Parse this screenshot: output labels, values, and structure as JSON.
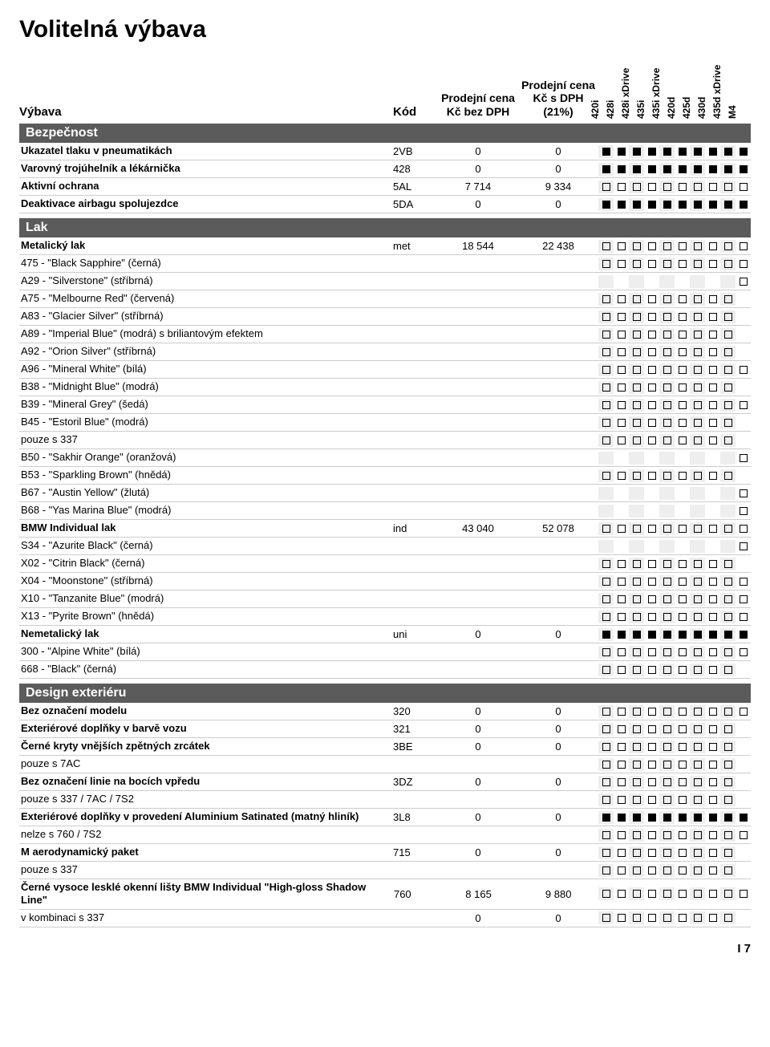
{
  "title": "Volitelná výbava",
  "header": {
    "vybava": "Výbava",
    "kod": "Kód",
    "p1_l1": "Prodejní cena",
    "p1_l2": "Kč bez DPH",
    "p2_l1": "Prodejní cena",
    "p2_l2": "Kč s DPH",
    "p2_l3": "(21%)"
  },
  "variants": [
    "420i",
    "428i",
    "428i xDrive",
    "435i",
    "435i xDrive",
    "420d",
    "425d",
    "430d",
    "435d xDrive",
    "M4"
  ],
  "sections": [
    {
      "title": "Bezpečnost",
      "rows": [
        {
          "name": "Ukazatel tlaku v pneumatikách",
          "kod": "2VB",
          "p1": "0",
          "p2": "0",
          "bold": true,
          "av": [
            "f",
            "f",
            "f",
            "f",
            "f",
            "f",
            "f",
            "f",
            "f",
            "f"
          ]
        },
        {
          "name": "Varovný trojúhelník a lékárnička",
          "kod": "428",
          "p1": "0",
          "p2": "0",
          "bold": true,
          "av": [
            "f",
            "f",
            "f",
            "f",
            "f",
            "f",
            "f",
            "f",
            "f",
            "f"
          ]
        },
        {
          "name": "Aktivní ochrana",
          "kod": "5AL",
          "p1": "7 714",
          "p2": "9 334",
          "bold": true,
          "av": [
            "o",
            "o",
            "o",
            "o",
            "o",
            "o",
            "o",
            "o",
            "o",
            "o"
          ]
        },
        {
          "name": "Deaktivace airbagu spolujezdce",
          "kod": "5DA",
          "p1": "0",
          "p2": "0",
          "bold": true,
          "av": [
            "f",
            "f",
            "f",
            "f",
            "f",
            "f",
            "f",
            "f",
            "f",
            "f"
          ]
        }
      ]
    },
    {
      "title": "Lak",
      "rows": [
        {
          "name": "Metalický lak",
          "kod": "met",
          "p1": "18 544",
          "p2": "22 438",
          "bold": true,
          "av": [
            "o",
            "o",
            "o",
            "o",
            "o",
            "o",
            "o",
            "o",
            "o",
            "o"
          ]
        },
        {
          "name": "475 - \"Black Sapphire\" (černá)",
          "av": [
            "o",
            "o",
            "o",
            "o",
            "o",
            "o",
            "o",
            "o",
            "o",
            "o"
          ]
        },
        {
          "name": "A29 - \"Silverstone\" (stříbrná)",
          "av": [
            "",
            "",
            "",
            "",
            "",
            "",
            "",
            "",
            "",
            "o"
          ]
        },
        {
          "name": "A75 - \"Melbourne Red\" (červená)",
          "av": [
            "o",
            "o",
            "o",
            "o",
            "o",
            "o",
            "o",
            "o",
            "o",
            ""
          ]
        },
        {
          "name": "A83 - \"Glacier Silver\" (stříbrná)",
          "av": [
            "o",
            "o",
            "o",
            "o",
            "o",
            "o",
            "o",
            "o",
            "o",
            ""
          ]
        },
        {
          "name": "A89 - \"Imperial Blue\" (modrá) s briliantovým efektem",
          "av": [
            "o",
            "o",
            "o",
            "o",
            "o",
            "o",
            "o",
            "o",
            "o",
            ""
          ]
        },
        {
          "name": "A92 - \"Orion Silver\" (stříbrná)",
          "av": [
            "o",
            "o",
            "o",
            "o",
            "o",
            "o",
            "o",
            "o",
            "o",
            ""
          ]
        },
        {
          "name": "A96 - \"Mineral White\" (bílá)",
          "av": [
            "o",
            "o",
            "o",
            "o",
            "o",
            "o",
            "o",
            "o",
            "o",
            "o"
          ]
        },
        {
          "name": "B38 - \"Midnight Blue\" (modrá)",
          "av": [
            "o",
            "o",
            "o",
            "o",
            "o",
            "o",
            "o",
            "o",
            "o",
            ""
          ]
        },
        {
          "name": "B39 - \"Mineral Grey\" (šedá)",
          "av": [
            "o",
            "o",
            "o",
            "o",
            "o",
            "o",
            "o",
            "o",
            "o",
            "o"
          ]
        },
        {
          "name": "B45 - \"Estoril Blue\" (modrá)",
          "av": [
            "o",
            "o",
            "o",
            "o",
            "o",
            "o",
            "o",
            "o",
            "o",
            ""
          ]
        },
        {
          "name": "pouze s 337",
          "av": [
            "o",
            "o",
            "o",
            "o",
            "o",
            "o",
            "o",
            "o",
            "o",
            ""
          ]
        },
        {
          "name": "B50 - \"Sakhir Orange\" (oranžová)",
          "av": [
            "",
            "",
            "",
            "",
            "",
            "",
            "",
            "",
            "",
            "o"
          ]
        },
        {
          "name": "B53 - \"Sparkling Brown\" (hnědá)",
          "av": [
            "o",
            "o",
            "o",
            "o",
            "o",
            "o",
            "o",
            "o",
            "o",
            ""
          ]
        },
        {
          "name": "B67 - \"Austin Yellow\" (žlutá)",
          "av": [
            "",
            "",
            "",
            "",
            "",
            "",
            "",
            "",
            "",
            "o"
          ]
        },
        {
          "name": "B68 - \"Yas Marina Blue\" (modrá)",
          "av": [
            "",
            "",
            "",
            "",
            "",
            "",
            "",
            "",
            "",
            "o"
          ]
        },
        {
          "name": "BMW Individual lak",
          "kod": "ind",
          "p1": "43 040",
          "p2": "52 078",
          "bold": true,
          "av": [
            "o",
            "o",
            "o",
            "o",
            "o",
            "o",
            "o",
            "o",
            "o",
            "o"
          ]
        },
        {
          "name": "S34 - \"Azurite Black\" (černá)",
          "av": [
            "",
            "",
            "",
            "",
            "",
            "",
            "",
            "",
            "",
            "o"
          ]
        },
        {
          "name": "X02 - \"Citrin Black\" (černá)",
          "av": [
            "o",
            "o",
            "o",
            "o",
            "o",
            "o",
            "o",
            "o",
            "o",
            ""
          ]
        },
        {
          "name": "X04 - \"Moonstone\" (stříbrná)",
          "av": [
            "o",
            "o",
            "o",
            "o",
            "o",
            "o",
            "o",
            "o",
            "o",
            "o"
          ]
        },
        {
          "name": "X10 - \"Tanzanite Blue\" (modrá)",
          "av": [
            "o",
            "o",
            "o",
            "o",
            "o",
            "o",
            "o",
            "o",
            "o",
            "o"
          ]
        },
        {
          "name": "X13 - \"Pyrite Brown\" (hnědá)",
          "av": [
            "o",
            "o",
            "o",
            "o",
            "o",
            "o",
            "o",
            "o",
            "o",
            "o"
          ]
        },
        {
          "name": "Nemetalický lak",
          "kod": "uni",
          "p1": "0",
          "p2": "0",
          "bold": true,
          "av": [
            "f",
            "f",
            "f",
            "f",
            "f",
            "f",
            "f",
            "f",
            "f",
            "f"
          ]
        },
        {
          "name": "300 - \"Alpine White\" (bílá)",
          "av": [
            "o",
            "o",
            "o",
            "o",
            "o",
            "o",
            "o",
            "o",
            "o",
            "o"
          ]
        },
        {
          "name": "668 - \"Black\" (černá)",
          "av": [
            "o",
            "o",
            "o",
            "o",
            "o",
            "o",
            "o",
            "o",
            "o",
            ""
          ]
        }
      ]
    },
    {
      "title": "Design exteriéru",
      "rows": [
        {
          "name": "Bez označení modelu",
          "kod": "320",
          "p1": "0",
          "p2": "0",
          "bold": true,
          "av": [
            "o",
            "o",
            "o",
            "o",
            "o",
            "o",
            "o",
            "o",
            "o",
            "o"
          ]
        },
        {
          "name": "Exteriérové doplňky v barvě vozu",
          "kod": "321",
          "p1": "0",
          "p2": "0",
          "bold": true,
          "av": [
            "o",
            "o",
            "o",
            "o",
            "o",
            "o",
            "o",
            "o",
            "o",
            ""
          ]
        },
        {
          "name": "Černé kryty vnějších zpětných zrcátek",
          "kod": "3BE",
          "p1": "0",
          "p2": "0",
          "bold": true,
          "av": [
            "o",
            "o",
            "o",
            "o",
            "o",
            "o",
            "o",
            "o",
            "o",
            ""
          ]
        },
        {
          "name": "pouze s 7AC",
          "av": [
            "o",
            "o",
            "o",
            "o",
            "o",
            "o",
            "o",
            "o",
            "o",
            ""
          ]
        },
        {
          "name": "Bez označení linie na bocích vpředu",
          "kod": "3DZ",
          "p1": "0",
          "p2": "0",
          "bold": true,
          "av": [
            "o",
            "o",
            "o",
            "o",
            "o",
            "o",
            "o",
            "o",
            "o",
            ""
          ]
        },
        {
          "name": "pouze s 337 / 7AC / 7S2",
          "av": [
            "o",
            "o",
            "o",
            "o",
            "o",
            "o",
            "o",
            "o",
            "o",
            ""
          ]
        },
        {
          "name": "Exteriérové doplňky v provedení Aluminium Satinated (matný hliník)",
          "kod": "3L8",
          "p1": "0",
          "p2": "0",
          "bold": true,
          "av": [
            "f",
            "f",
            "f",
            "f",
            "f",
            "f",
            "f",
            "f",
            "f",
            "f"
          ]
        },
        {
          "name": "nelze s 760 / 7S2",
          "av": [
            "o",
            "o",
            "o",
            "o",
            "o",
            "o",
            "o",
            "o",
            "o",
            "o"
          ]
        },
        {
          "name": "M aerodynamický paket",
          "kod": "715",
          "p1": "0",
          "p2": "0",
          "bold": true,
          "av": [
            "o",
            "o",
            "o",
            "o",
            "o",
            "o",
            "o",
            "o",
            "o",
            ""
          ]
        },
        {
          "name": "pouze s 337",
          "av": [
            "o",
            "o",
            "o",
            "o",
            "o",
            "o",
            "o",
            "o",
            "o",
            ""
          ]
        },
        {
          "name": "Černé vysoce lesklé okenní lišty BMW Individual \"High-gloss Shadow Line\"",
          "kod": "760",
          "p1": "8 165",
          "p2": "9 880",
          "bold": true,
          "av": [
            "o",
            "o",
            "o",
            "o",
            "o",
            "o",
            "o",
            "o",
            "o",
            "o"
          ]
        },
        {
          "name": "v kombinaci s 337",
          "p1": "0",
          "p2": "0",
          "av": [
            "o",
            "o",
            "o",
            "o",
            "o",
            "o",
            "o",
            "o",
            "o",
            ""
          ]
        }
      ]
    }
  ],
  "footer": "I 7"
}
